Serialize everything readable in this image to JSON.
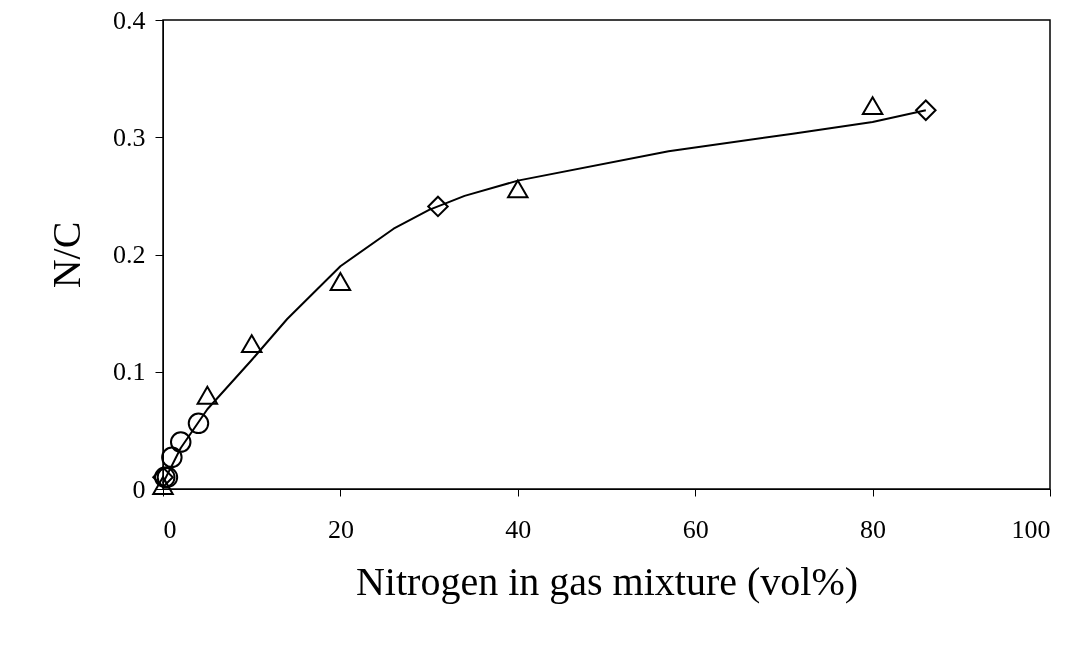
{
  "chart_data": {
    "type": "scatter",
    "xlabel": "Nitrogen in gas mixture (vol%)",
    "ylabel": "N/C",
    "xlim": [
      0,
      100
    ],
    "xticks": [
      0,
      20,
      40,
      60,
      80,
      100
    ],
    "ylim": [
      0,
      0.4
    ],
    "yticks": [
      0,
      0.1,
      0.2,
      0.3,
      0.4
    ],
    "grid": false,
    "series": [
      {
        "marker": "triangle",
        "color": "#000000",
        "x": [
          0,
          5,
          10,
          20,
          40,
          80
        ],
        "values": [
          0.003,
          0.08,
          0.124,
          0.177,
          0.256,
          0.327
        ]
      },
      {
        "marker": "circle",
        "color": "#000000",
        "x": [
          0.2,
          0.5,
          1,
          2,
          4
        ],
        "values": [
          0.01,
          0.01,
          0.027,
          0.04,
          0.056
        ]
      },
      {
        "marker": "diamond",
        "color": "#000000",
        "x": [
          0,
          31,
          86
        ],
        "values": [
          0.01,
          0.241,
          0.323
        ]
      },
      {
        "type": "line",
        "marker": "none",
        "line_style": "solid",
        "color": "#000000",
        "x": [
          0,
          2,
          5,
          10,
          14,
          20,
          26,
          30,
          34,
          40,
          57,
          71,
          80,
          86
        ],
        "values": [
          0.005,
          0.035,
          0.068,
          0.11,
          0.145,
          0.19,
          0.222,
          0.238,
          0.25,
          0.263,
          0.288,
          0.303,
          0.313,
          0.323
        ]
      }
    ]
  }
}
